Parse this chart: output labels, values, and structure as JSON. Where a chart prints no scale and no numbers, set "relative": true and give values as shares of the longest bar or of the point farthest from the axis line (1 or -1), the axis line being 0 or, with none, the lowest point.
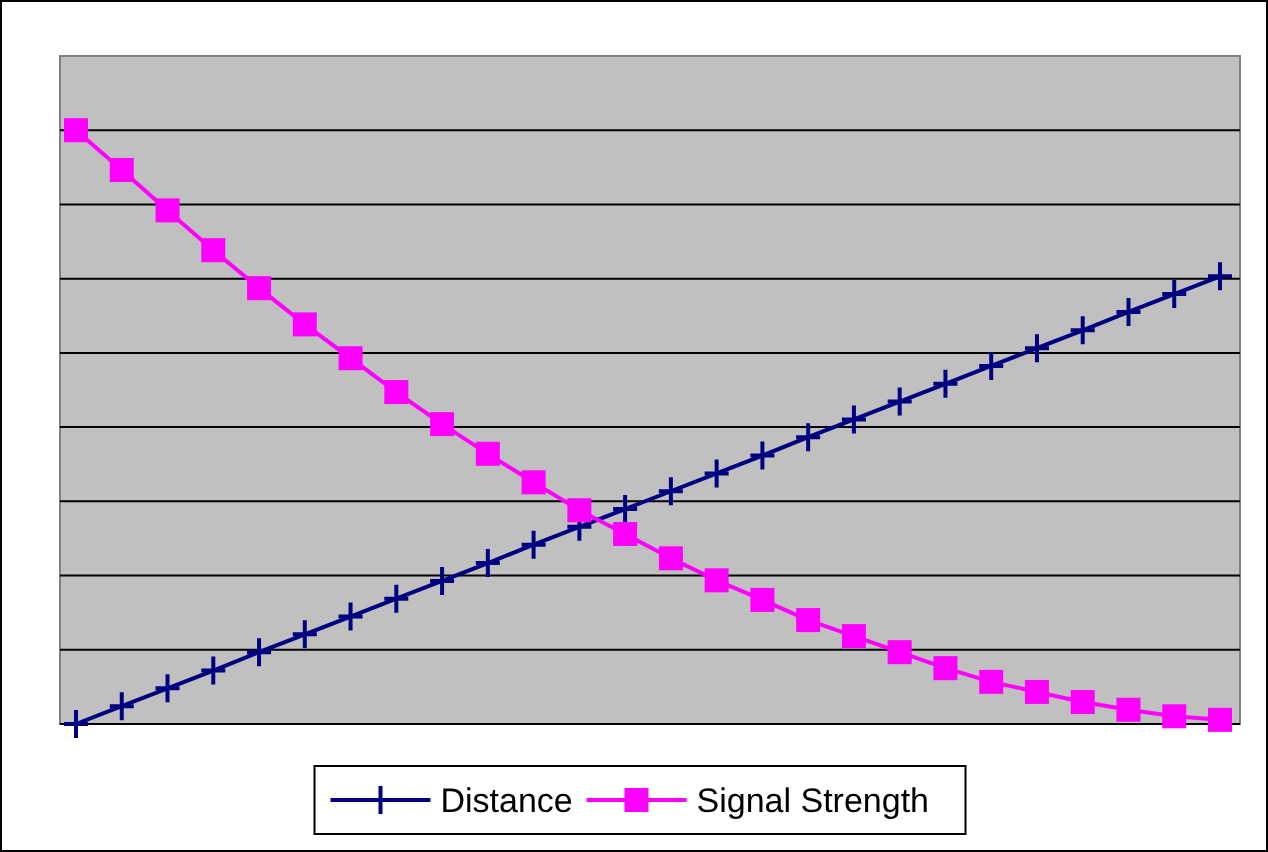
{
  "chart_data": {
    "type": "line",
    "relative": true,
    "grid": "y",
    "legend": "bottom",
    "categories": [
      null,
      null,
      null,
      null,
      null,
      null,
      null,
      null,
      null,
      null,
      null,
      null,
      null,
      null,
      null,
      null,
      null,
      null,
      null,
      null,
      null,
      null,
      null,
      null,
      null,
      null
    ],
    "series": [
      {
        "name": "Distance",
        "color": "#000080",
        "marker": "cross",
        "values": [
          0,
          0.03,
          0.06,
          0.09,
          0.121,
          0.151,
          0.181,
          0.211,
          0.241,
          0.271,
          0.302,
          0.332,
          0.362,
          0.392,
          0.422,
          0.452,
          0.483,
          0.513,
          0.543,
          0.573,
          0.603,
          0.633,
          0.663,
          0.694,
          0.724,
          0.754
        ]
      },
      {
        "name": "Signal Strength",
        "color": "#ff00ff",
        "marker": "square",
        "values": [
          1,
          0.933,
          0.865,
          0.798,
          0.734,
          0.673,
          0.616,
          0.559,
          0.505,
          0.455,
          0.407,
          0.36,
          0.32,
          0.279,
          0.242,
          0.209,
          0.175,
          0.148,
          0.121,
          0.094,
          0.071,
          0.054,
          0.037,
          0.024,
          0.013,
          0.007
        ]
      }
    ]
  }
}
